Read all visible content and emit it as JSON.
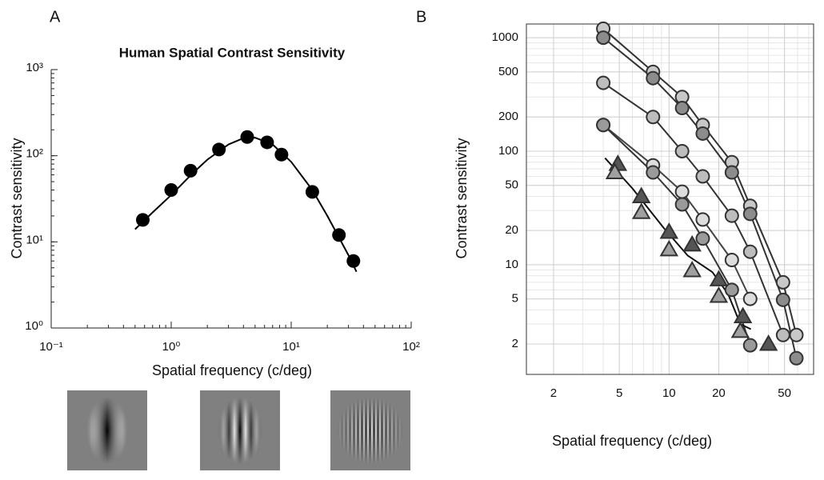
{
  "chart_data": [
    {
      "type": "line",
      "label": "A",
      "title": "Human Spatial Contrast Sensitivity",
      "x_label": "Spatial frequency (c/deg)",
      "y_label": "Contrast sensitivity",
      "xscale": "log",
      "yscale": "log",
      "frame": false,
      "xlim": [
        0.1,
        100
      ],
      "ylim": [
        1,
        1000
      ],
      "xticks": [
        {
          "value": 0.1,
          "label": "10⁻¹"
        },
        {
          "value": 1,
          "label": "10⁰"
        },
        {
          "value": 10,
          "label": "10¹"
        },
        {
          "value": 100,
          "label": "10²"
        }
      ],
      "yticks": [
        {
          "value": 1,
          "label": "10⁰"
        },
        {
          "value": 10,
          "label": "10¹"
        },
        {
          "value": 100,
          "label": "10²"
        },
        {
          "value": 1000,
          "label": "10³"
        }
      ],
      "series": [
        {
          "marker": "circle",
          "line": false,
          "color": "#000000",
          "x": [
            0.58,
            1.0,
            1.45,
            2.5,
            4.3,
            6.3,
            8.3,
            15,
            25,
            33
          ],
          "values": [
            18,
            40,
            67,
            118,
            165,
            143,
            103,
            38,
            12,
            6
          ]
        },
        {
          "marker": "none",
          "line": true,
          "line_color": "#000000",
          "x": [
            0.5,
            0.7,
            1,
            1.5,
            2,
            3,
            4,
            5,
            7,
            10,
            15,
            20,
            30,
            35
          ],
          "values": [
            14,
            22,
            35,
            62,
            90,
            135,
            160,
            162,
            135,
            85,
            40,
            20,
            7,
            4.5
          ]
        }
      ]
    },
    {
      "type": "line",
      "label": "B",
      "x_label": "Spatial frequency (c/deg)",
      "y_label": "Contrast sensitivity",
      "xscale": "log",
      "yscale": "log",
      "frame": true,
      "grid": true,
      "minor_grid": true,
      "xlim": [
        1.37,
        75
      ],
      "ylim": [
        1.08,
        1320
      ],
      "xticks": [
        2,
        5,
        10,
        20,
        50
      ],
      "yticks": [
        2,
        5,
        10,
        20,
        50,
        100,
        200,
        500,
        1000
      ],
      "series": [
        {
          "marker": "circle",
          "line": true,
          "color": "#c8c8c8",
          "line_color": "#333333",
          "x": [
            4,
            8,
            12,
            16,
            24,
            31,
            49,
            59
          ],
          "values": [
            1200,
            500,
            300,
            170,
            80,
            33,
            7,
            2.4
          ]
        },
        {
          "marker": "circle",
          "line": true,
          "color": "#8c8c8c",
          "line_color": "#333333",
          "x": [
            4,
            8,
            12,
            16,
            24,
            31,
            49,
            59
          ],
          "values": [
            1000,
            440,
            240,
            143,
            65,
            28,
            4.9,
            1.5
          ]
        },
        {
          "marker": "circle",
          "line": true,
          "color": "#bdbdbd",
          "line_color": "#333333",
          "x": [
            4,
            8,
            12,
            16,
            24,
            31,
            49
          ],
          "values": [
            400,
            200,
            100,
            60,
            27,
            13,
            2.4
          ]
        },
        {
          "marker": "circle",
          "line": true,
          "color": "#dddddd",
          "line_color": "#444444",
          "x": [
            4,
            8,
            12,
            16,
            24,
            31
          ],
          "values": [
            170,
            75,
            44,
            25,
            11,
            5
          ]
        },
        {
          "marker": "circle",
          "line": true,
          "color": "#9a9a9a",
          "line_color": "#333333",
          "x": [
            4,
            8,
            12,
            16,
            24,
            31
          ],
          "values": [
            170,
            65,
            34,
            17,
            6,
            1.95
          ]
        },
        {
          "marker": "triangle",
          "line": false,
          "color": "#555555",
          "x": [
            4.9,
            6.8,
            10,
            13.8,
            20,
            28,
            40
          ],
          "values": [
            77,
            40,
            19.4,
            15,
            7.4,
            3.5,
            2.0
          ]
        },
        {
          "marker": "triangle",
          "line": false,
          "color": "#a0a0a0",
          "x": [
            4.7,
            6.8,
            10,
            13.8,
            20,
            27
          ],
          "values": [
            65,
            29,
            13.6,
            8.9,
            5.3,
            2.6
          ]
        },
        {
          "marker": "none",
          "line": true,
          "line_color": "#111111",
          "x": [
            4.1,
            6,
            9.3,
            13,
            18.3,
            22.8,
            27,
            31.3
          ],
          "values": [
            87,
            47,
            21,
            12,
            8.6,
            5.5,
            3,
            2.7
          ]
        }
      ]
    }
  ]
}
